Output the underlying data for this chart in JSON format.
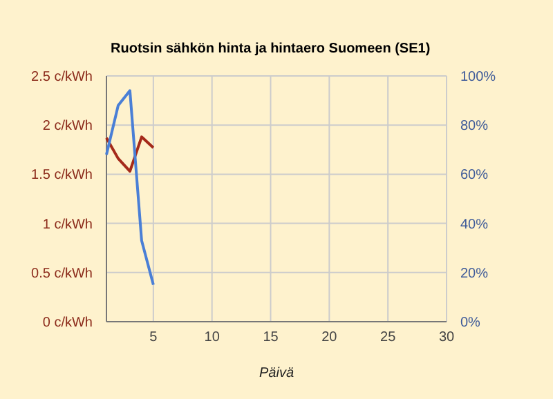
{
  "chart_data": {
    "type": "line",
    "title": "Ruotsin sähkön hinta ja hintaero Suomeen (SE1)",
    "xlabel": "Päivä",
    "x": [
      1,
      2,
      3,
      4,
      5
    ],
    "series": [
      {
        "color": "#a52a1a",
        "values": [
          1.87,
          1.66,
          1.53,
          1.88,
          1.77
        ]
      },
      {
        "color": "#4a7fd6",
        "values": [
          68,
          88,
          94,
          33,
          15
        ],
        "axis": "y2"
      }
    ],
    "xlim": [
      1,
      30
    ],
    "xticks": [
      5,
      10,
      15,
      20,
      25,
      30
    ],
    "ylim": [
      0,
      2.5
    ],
    "yticks": [
      {
        "value": 0,
        "label": "0 c/kWh"
      },
      {
        "value": 0.5,
        "label": "0.5 c/kWh"
      },
      {
        "value": 1,
        "label": "1 c/kWh"
      },
      {
        "value": 1.5,
        "label": "1.5 c/kWh"
      },
      {
        "value": 2,
        "label": "2 c/kWh"
      },
      {
        "value": 2.5,
        "label": "2.5 c/kWh"
      }
    ],
    "y2lim": [
      0,
      100
    ],
    "y2ticks": [
      {
        "value": 0,
        "label": "0%"
      },
      {
        "value": 20,
        "label": "20%"
      },
      {
        "value": 40,
        "label": "40%"
      },
      {
        "value": 60,
        "label": "60%"
      },
      {
        "value": 80,
        "label": "80%"
      },
      {
        "value": 100,
        "label": "100%"
      }
    ],
    "grid": true,
    "marker": "none",
    "line_style": "solid"
  }
}
